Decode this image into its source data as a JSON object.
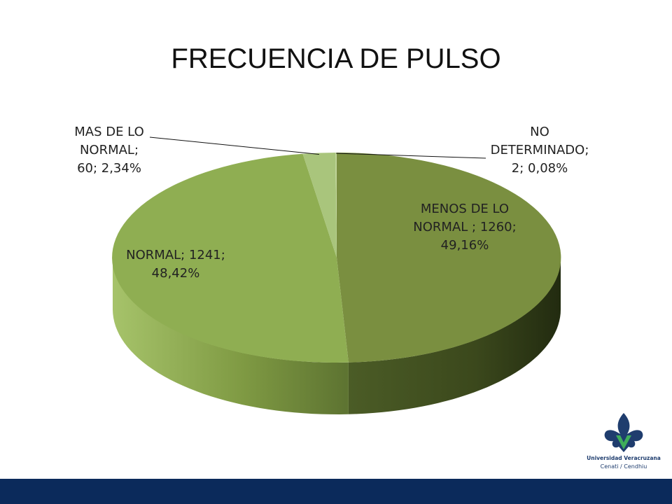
{
  "slide": {
    "title": "FRECUENCIA DE PULSO"
  },
  "chart_data": {
    "type": "pie",
    "title": "FRECUENCIA DE PULSO",
    "slices": [
      {
        "label_line1": "MENOS DE LO",
        "label_line2": "NORMAL ; 1260;",
        "label_line3": "49,16%",
        "value": 1260,
        "percent": 49.16,
        "color": "#7a8f40"
      },
      {
        "label_line1": "NORMAL; 1241;",
        "label_line2": "48,42%",
        "value": 1241,
        "percent": 48.42,
        "color": "#8fae52"
      },
      {
        "label_line1": "MAS DE LO",
        "label_line2": "NORMAL;",
        "label_line3": "60; 2,34%",
        "value": 60,
        "percent": 2.34,
        "color": "#a9c57c"
      },
      {
        "label_line1": "NO",
        "label_line2": "DETERMINADO;",
        "label_line3": "2; 0,08%",
        "value": 2,
        "percent": 0.08,
        "color": "#c5d9a0"
      }
    ],
    "legend": "none"
  },
  "logo": {
    "name": "Universidad Veracruzana",
    "subtitle": "Cenati / Cendhiu",
    "icon": "fleur-de-lis-icon"
  },
  "colors": {
    "footer": "#0b2a5b",
    "logo_primary": "#1f3d6e",
    "logo_accent": "#3fae5a"
  }
}
